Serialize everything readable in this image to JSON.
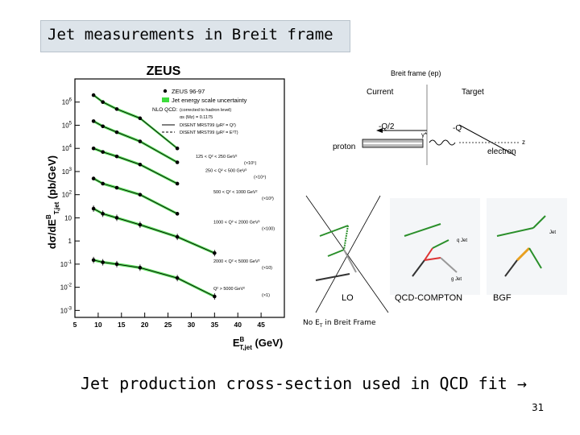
{
  "slide": {
    "title": "Jet measurements in Breit frame",
    "caption": "Jet production cross-section used in QCD fit",
    "caption_arrow": "→",
    "page_number": "31"
  },
  "zeus_plot": {
    "header": "ZEUS",
    "ylabel": "dσ/dE",
    "ylabel_sub": "T,jet",
    "ylabel_sup": "B",
    "ylabel_unit": " (pb/GeV)",
    "xlabel": "E",
    "xlabel_sub": "T,jet",
    "xlabel_sup": "B",
    "xlabel_unit": " (GeV)",
    "legend": {
      "data": "ZEUS 96-97",
      "band": "Jet energy scale uncertainty",
      "nlo": "NLO QCD:",
      "nlo_note": "(corrected to hadron level)",
      "alpha": "αs (Mz) = 0.1175",
      "line1": "DISENT MRST99 (μR² = Q²)",
      "line2": "DISENT MRST99 (μR² = E²T)"
    },
    "colors": {
      "band": "#3ddc3d",
      "data": "#000000"
    },
    "x_ticks": [
      "5",
      "10",
      "15",
      "20",
      "25",
      "30",
      "35",
      "40",
      "45"
    ],
    "y_ticks": [
      {
        "base": "10",
        "exp": "6"
      },
      {
        "base": "10",
        "exp": "5"
      },
      {
        "base": "10",
        "exp": "4"
      },
      {
        "base": "10",
        "exp": "3"
      },
      {
        "base": "10",
        "exp": "2"
      },
      {
        "base": "10",
        "exp": ""
      },
      {
        "base": "1",
        "exp": ""
      },
      {
        "base": "10",
        "exp": "-1"
      },
      {
        "base": "10",
        "exp": "-2"
      },
      {
        "base": "10",
        "exp": "-3"
      }
    ],
    "bins": [
      {
        "range": "125 < Q² < 250 GeV²",
        "scale": "(×10⁵)"
      },
      {
        "range": "250 < Q² < 500 GeV²",
        "scale": "(×10⁴)"
      },
      {
        "range": "500 < Q² < 1000 GeV²",
        "scale": "(×10³)"
      },
      {
        "range": "1000 < Q² < 2000 GeV²",
        "scale": "(×100)"
      },
      {
        "range": "2000 < Q² < 5000 GeV²",
        "scale": "(×10)"
      },
      {
        "range": "Q² > 5000 GeV²",
        "scale": "(×1)"
      }
    ]
  },
  "chart_data": {
    "type": "scatter",
    "title": "ZEUS",
    "xlabel": "E_T,jet^B (GeV)",
    "ylabel": "dσ/dE_T,jet^B (pb/GeV)",
    "xlim": [
      5,
      50
    ],
    "ylim": [
      0.0005,
      10000000
    ],
    "y_scale": "log",
    "series": [
      {
        "name": "125 < Q² < 250 GeV² (×10⁵)",
        "x": [
          9,
          11,
          14,
          19,
          27
        ],
        "y": [
          2000000,
          1000000,
          500000,
          200000,
          10000
        ]
      },
      {
        "name": "250 < Q² < 500 GeV² (×10⁴)",
        "x": [
          9,
          11,
          14,
          19,
          27
        ],
        "y": [
          150000,
          90000,
          50000,
          20000,
          2500
        ]
      },
      {
        "name": "500 < Q² < 1000 GeV² (×10³)",
        "x": [
          9,
          11,
          14,
          19,
          27
        ],
        "y": [
          10000,
          7000,
          4500,
          2000,
          300
        ]
      },
      {
        "name": "1000 < Q² < 2000 GeV² (×100)",
        "x": [
          9,
          11,
          14,
          19,
          27
        ],
        "y": [
          500,
          300,
          200,
          100,
          15
        ]
      },
      {
        "name": "2000 < Q² < 5000 GeV² (×10)",
        "x": [
          9,
          11,
          14,
          19,
          27,
          35
        ],
        "y": [
          25,
          15,
          10,
          5,
          1.5,
          0.3
        ]
      },
      {
        "name": "Q² > 5000 GeV² (×1)",
        "x": [
          9,
          11,
          14,
          19,
          27,
          35
        ],
        "y": [
          0.15,
          0.12,
          0.1,
          0.07,
          0.025,
          0.004
        ]
      }
    ]
  },
  "breit": {
    "title": "Breit frame (ep)",
    "current": "Current",
    "target": "Target",
    "neg_q2": "-Q/2",
    "neg_q": "-Q",
    "gamma": "γ*",
    "z": "z",
    "proton": "proton",
    "electron": "electron"
  },
  "feynman": {
    "lo": "LO",
    "compton": "QCD-COMPTON",
    "bgf": "BGF",
    "q_jet": "q Jet",
    "jet": "Jet",
    "g_jet": "g Jet"
  },
  "note": "No E",
  "note_sub": "T",
  "note_rest": " in Breit Frame"
}
